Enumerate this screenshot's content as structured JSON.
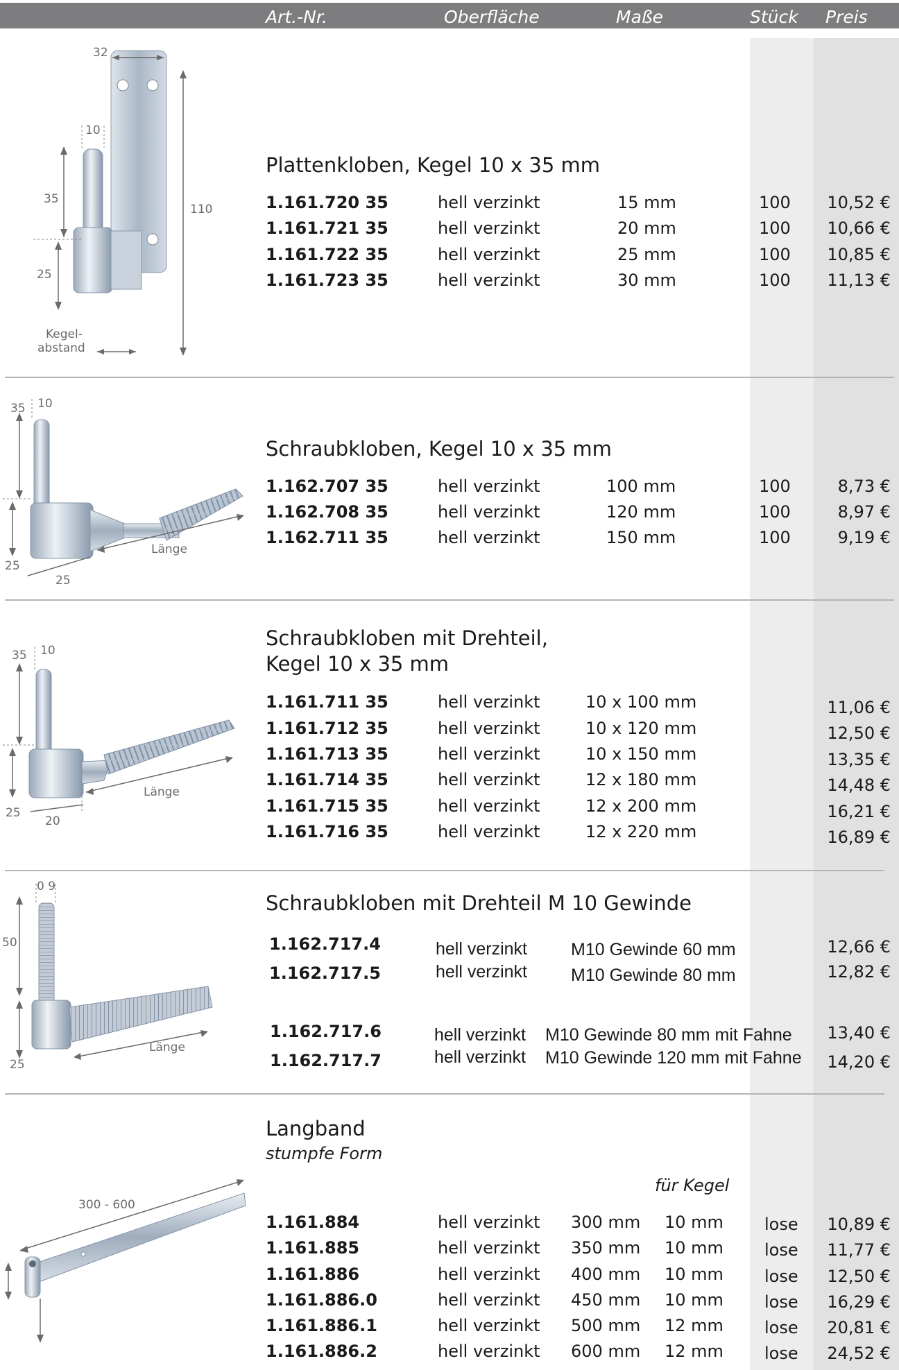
{
  "header": {
    "art": "Art.-Nr.",
    "surface": "Oberfläche",
    "size": "Maße",
    "qty": "Stück",
    "price": "Preis"
  },
  "sections": [
    {
      "title": "Plattenkloben, Kegel 10 x 35 mm",
      "dims": [
        "32",
        "10",
        "35",
        "25",
        "110",
        "Kegel-",
        "abstand"
      ],
      "rows": [
        {
          "art": "1.161.720 35",
          "surface": "hell verzinkt",
          "size": "15 mm",
          "qty": "100",
          "price": "10,52 €"
        },
        {
          "art": "1.161.721 35",
          "surface": "hell verzinkt",
          "size": "20 mm",
          "qty": "100",
          "price": "10,66 €"
        },
        {
          "art": "1.161.722 35",
          "surface": "hell verzinkt",
          "size": "25 mm",
          "qty": "100",
          "price": "10,85 €"
        },
        {
          "art": "1.161.723 35",
          "surface": "hell verzinkt",
          "size": "30 mm",
          "qty": "100",
          "price": "11,13 €"
        }
      ]
    },
    {
      "title": "Schraubkloben, Kegel 10 x 35 mm",
      "dims": [
        "35",
        "10",
        "25",
        "25",
        "Länge"
      ],
      "rows": [
        {
          "art": "1.162.707 35",
          "surface": "hell verzinkt",
          "size": "100 mm",
          "qty": "100",
          "price": "8,73 €"
        },
        {
          "art": "1.162.708 35",
          "surface": "hell verzinkt",
          "size": "120 mm",
          "qty": "100",
          "price": "8,97 €"
        },
        {
          "art": "1.162.711 35",
          "surface": "hell verzinkt",
          "size": "150 mm",
          "qty": "100",
          "price": "9,19 €"
        }
      ]
    },
    {
      "title_line1": "Schraubkloben mit Drehteil,",
      "title_line2": "Kegel 10 x 35 mm",
      "dims": [
        "35",
        "10",
        "25",
        "20",
        "Länge"
      ],
      "rows": [
        {
          "art": "1.161.711 35",
          "surface": "hell verzinkt",
          "size": "10 x 100 mm",
          "price": "11,06 €"
        },
        {
          "art": "1.161.712 35",
          "surface": "hell verzinkt",
          "size": "10 x 120 mm",
          "price": "12,50 €"
        },
        {
          "art": "1.161.713 35",
          "surface": "hell verzinkt",
          "size": "10 x 150 mm",
          "price": "13,35 €"
        },
        {
          "art": "1.161.714 35",
          "surface": "hell verzinkt",
          "size": "12 x 180 mm",
          "price": "14,48 €"
        },
        {
          "art": "1.161.715 35",
          "surface": "hell verzinkt",
          "size": "12 x 200 mm",
          "price": "16,21 €"
        },
        {
          "art": "1.161.716 35",
          "surface": "hell verzinkt",
          "size": "12 x 220 mm",
          "price": "16,89 €"
        }
      ]
    },
    {
      "title": "Schraubkloben mit Drehteil M 10 Gewinde",
      "dims": [
        "0 9",
        "50",
        "25",
        "Länge"
      ],
      "rows": [
        {
          "art": "1.162.717.4",
          "surface": "hell verzinkt",
          "size": "M10 Gewinde 60 mm",
          "price": "12,66 €"
        },
        {
          "art": "1.162.717.5",
          "surface": "hell verzinkt",
          "size": "M10 Gewinde 80 mm",
          "price": "12,82 €"
        },
        {
          "art": "1.162.717.6",
          "surface": "hell verzinkt",
          "size": "M10 Gewinde 80 mm mit Fahne",
          "price": "13,40 €"
        },
        {
          "art": "1.162.717.7",
          "surface": "hell verzinkt",
          "size": "M10 Gewinde 120 mm mit Fahne",
          "price": "14,20 €"
        }
      ]
    },
    {
      "title": "Langband",
      "subtitle": "stumpfe Form",
      "kegel_header": "für Kegel",
      "dims": [
        "300 - 600"
      ],
      "rows": [
        {
          "art": "1.161.884",
          "surface": "hell verzinkt",
          "size": "300 mm",
          "kegel": "10 mm",
          "qty": "lose",
          "price": "10,89 €"
        },
        {
          "art": "1.161.885",
          "surface": "hell verzinkt",
          "size": "350 mm",
          "kegel": "10 mm",
          "qty": "lose",
          "price": "11,77 €"
        },
        {
          "art": "1.161.886",
          "surface": "hell verzinkt",
          "size": "400 mm",
          "kegel": "10 mm",
          "qty": "lose",
          "price": "12,50 €"
        },
        {
          "art": "1.161.886.0",
          "surface": "hell verzinkt",
          "size": "450 mm",
          "kegel": "10 mm",
          "qty": "lose",
          "price": "16,29 €"
        },
        {
          "art": "1.161.886.1",
          "surface": "hell verzinkt",
          "size": "500 mm",
          "kegel": "12 mm",
          "qty": "lose",
          "price": "20,81 €"
        },
        {
          "art": "1.161.886.2",
          "surface": "hell verzinkt",
          "size": "600 mm",
          "kegel": "12 mm",
          "qty": "lose",
          "price": "24,52 €"
        }
      ]
    }
  ]
}
